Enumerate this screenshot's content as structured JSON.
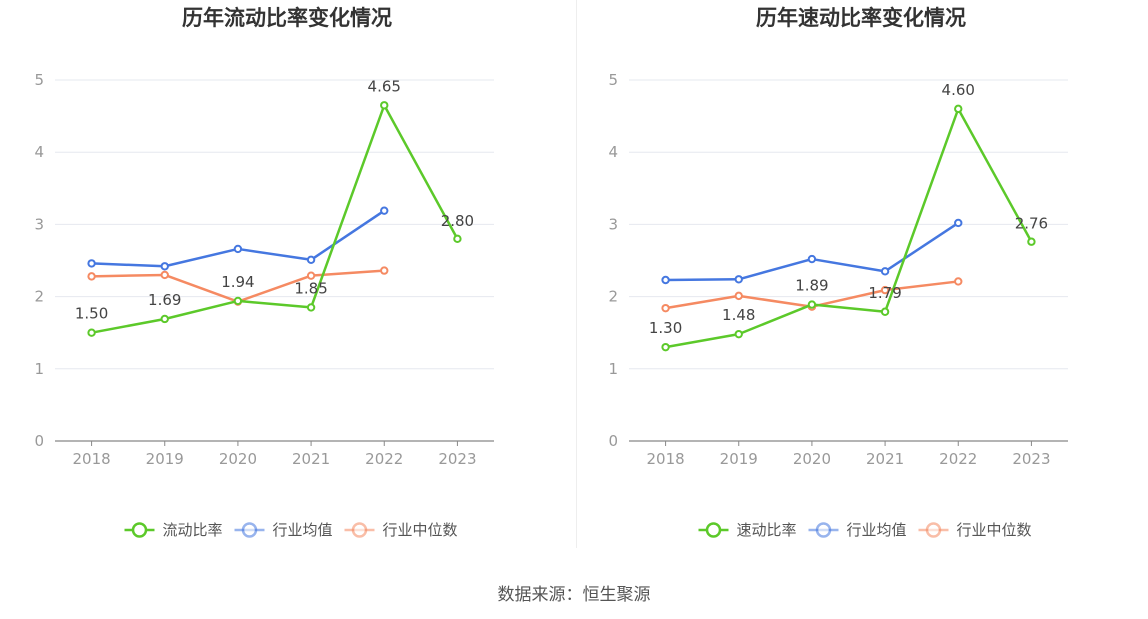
{
  "chart_data": [
    {
      "type": "line",
      "title": "历年流动比率变化情况",
      "categories": [
        "2018",
        "2019",
        "2020",
        "2021",
        "2022",
        "2023"
      ],
      "ylim": [
        0,
        5
      ],
      "yticks": [
        "0",
        "1",
        "2",
        "3",
        "4",
        "5"
      ],
      "grid": true,
      "legend_position": "bottom",
      "series": [
        {
          "name": "流动比率",
          "color": "#5cc92a",
          "values": [
            1.5,
            1.69,
            1.94,
            1.85,
            4.65,
            2.8
          ],
          "labels": [
            "1.50",
            "1.69",
            "1.94",
            "1.85",
            "4.65",
            "2.80"
          ]
        },
        {
          "name": "行业均值",
          "color": "#4577e0",
          "values": [
            2.46,
            2.42,
            2.66,
            2.51,
            3.19,
            null
          ]
        },
        {
          "name": "行业中位数",
          "color": "#f58a62",
          "values": [
            2.28,
            2.3,
            1.93,
            2.29,
            2.36,
            null
          ]
        }
      ]
    },
    {
      "type": "line",
      "title": "历年速动比率变化情况",
      "categories": [
        "2018",
        "2019",
        "2020",
        "2021",
        "2022",
        "2023"
      ],
      "ylim": [
        0,
        5
      ],
      "yticks": [
        "0",
        "1",
        "2",
        "3",
        "4",
        "5"
      ],
      "grid": true,
      "legend_position": "bottom",
      "series": [
        {
          "name": "速动比率",
          "color": "#5cc92a",
          "values": [
            1.3,
            1.48,
            1.89,
            1.79,
            4.6,
            2.76
          ],
          "labels": [
            "1.30",
            "1.48",
            "1.89",
            "1.79",
            "4.60",
            "2.76"
          ]
        },
        {
          "name": "行业均值",
          "color": "#4577e0",
          "values": [
            2.23,
            2.24,
            2.52,
            2.35,
            3.02,
            null
          ]
        },
        {
          "name": "行业中位数",
          "color": "#f58a62",
          "values": [
            1.84,
            2.01,
            1.86,
            2.09,
            2.21,
            null
          ]
        }
      ]
    }
  ],
  "source": "数据来源：恒生聚源"
}
